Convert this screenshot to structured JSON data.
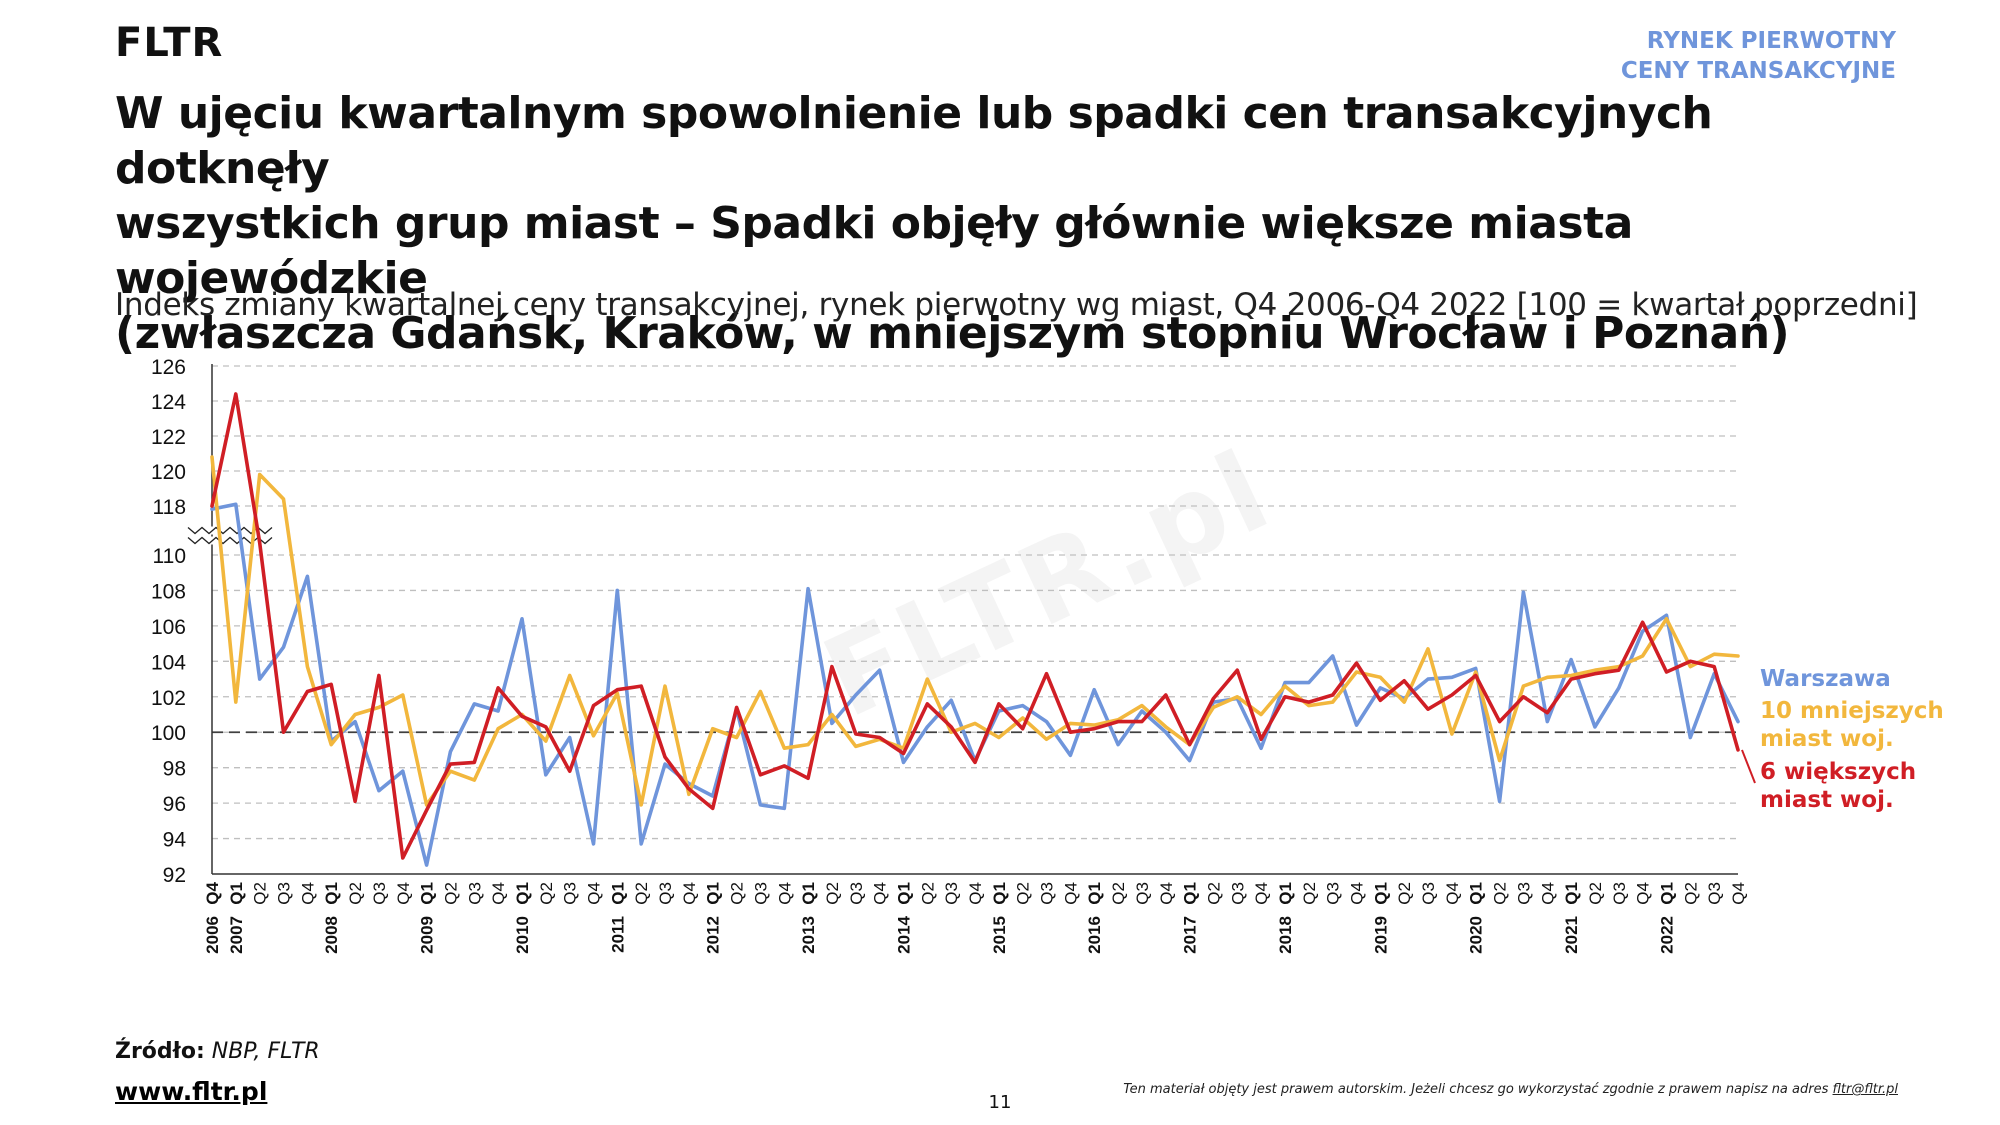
{
  "header": {
    "brand": "FLTR",
    "topright_line1": "RYNEK PIERWOTNY",
    "topright_line2": "CENY TRANSAKCYJNE",
    "title_line1": "W ujęciu kwartalnym spowolnienie lub spadki cen transakcyjnych dotknęły",
    "title_line2": "wszystkich grup miast – Spadki objęły głównie większe miasta wojewódzkie",
    "title_line3": "(zwłaszcza Gdańsk, Kraków, w mniejszym stopniu Wrocław i Poznań)",
    "subtitle": "Indeks zmiany kwartalnej ceny transakcyjnej, rynek pierwotny wg miast, Q4 2006-Q4 2022 [100 = kwartał poprzedni]"
  },
  "footer": {
    "source_label": "Źródło:",
    "source_text": "NBP, FLTR",
    "website": "www.fltr.pl",
    "page_number": "11",
    "copyright_text": "Ten materiał objęty jest prawem autorskim. Jeżeli chcesz go wykorzystać zgodnie z prawem napisz na adres",
    "copyright_email": "fltr@fltr.pl"
  },
  "watermark": "FLTR.pl",
  "colors": {
    "warszawa": "#6f95db",
    "mniejsze": "#f2b73d",
    "wieksze": "#d01e25",
    "grid": "#bfbfbf",
    "baseline": "#404040",
    "axis": "#333333"
  },
  "legend": {
    "warszawa": "Warszawa",
    "mniejsze_line1": "10 mniejszych",
    "mniejsze_line2": "miast woj.",
    "wieksze_line1": "6 większych",
    "wieksze_line2": "miast woj."
  },
  "chart_data": {
    "type": "line",
    "x_years": [
      "2006",
      "2007",
      "2008",
      "2009",
      "2010",
      "2011",
      "2012",
      "2013",
      "2014",
      "2015",
      "2016",
      "2017",
      "2018",
      "2019",
      "2020",
      "2021",
      "2022"
    ],
    "x_quarters": [
      "Q4",
      "Q1",
      "Q2",
      "Q3",
      "Q4",
      "Q1",
      "Q2",
      "Q3",
      "Q4",
      "Q1",
      "Q2",
      "Q3",
      "Q4",
      "Q1",
      "Q2",
      "Q3",
      "Q4",
      "Q1",
      "Q2",
      "Q3",
      "Q4",
      "Q1",
      "Q2",
      "Q3",
      "Q4",
      "Q1",
      "Q2",
      "Q3",
      "Q4",
      "Q1",
      "Q2",
      "Q3",
      "Q4",
      "Q1",
      "Q2",
      "Q3",
      "Q4",
      "Q1",
      "Q2",
      "Q3",
      "Q4",
      "Q1",
      "Q2",
      "Q3",
      "Q4",
      "Q1",
      "Q2",
      "Q3",
      "Q4",
      "Q1",
      "Q2",
      "Q3",
      "Q4",
      "Q1",
      "Q2",
      "Q3",
      "Q4",
      "Q1",
      "Q2",
      "Q3",
      "Q4",
      "Q1",
      "Q2",
      "Q3",
      "Q4"
    ],
    "y_ticks": [
      92,
      94,
      96,
      98,
      100,
      102,
      104,
      106,
      108,
      110,
      118,
      120,
      122,
      124,
      126
    ],
    "axis_break": [
      110,
      118
    ],
    "ylim": [
      92,
      126
    ],
    "baseline": 100,
    "grid": true,
    "legend_position": "right",
    "series": [
      {
        "name": "Warszawa",
        "values": [
          117.5,
          118.1,
          103.0,
          104.8,
          108.8,
          99.5,
          100.6,
          96.7,
          97.8,
          92.5,
          98.9,
          101.6,
          101.2,
          106.4,
          97.6,
          99.7,
          93.7,
          108.0,
          93.7,
          98.2,
          97.1,
          96.4,
          101.3,
          95.9,
          95.7,
          108.1,
          100.5,
          102.1,
          103.5,
          98.3,
          100.3,
          101.8,
          98.4,
          101.2,
          101.5,
          100.6,
          98.7,
          102.4,
          99.3,
          101.2,
          100.0,
          98.4,
          101.7,
          101.9,
          99.1,
          102.8,
          102.8,
          104.3,
          100.4,
          102.5,
          101.9,
          103.0,
          103.1,
          103.6,
          96.1,
          107.9,
          100.6,
          104.1,
          100.3,
          102.5,
          105.7,
          106.6,
          99.7,
          103.3,
          100.6
        ]
      },
      {
        "name": "10 mniejszych miast woj.",
        "values": [
          120.8,
          101.7,
          119.8,
          118.4,
          103.7,
          99.3,
          101.0,
          101.4,
          102.1,
          95.9,
          97.8,
          97.3,
          100.2,
          101.0,
          99.5,
          103.2,
          99.8,
          102.2,
          95.9,
          102.6,
          96.5,
          100.2,
          99.7,
          102.3,
          99.1,
          99.3,
          101.0,
          99.2,
          99.6,
          99.1,
          103.0,
          100.0,
          100.5,
          99.7,
          100.8,
          99.6,
          100.5,
          100.4,
          100.7,
          101.5,
          100.3,
          99.3,
          101.4,
          102.0,
          101.0,
          102.6,
          101.5,
          101.7,
          103.4,
          103.1,
          101.7,
          104.7,
          99.9,
          103.4,
          98.4,
          102.6,
          103.1,
          103.2,
          103.5,
          103.7,
          104.3,
          106.4,
          103.7,
          104.4,
          104.3
        ]
      },
      {
        "name": "6 większych miast woj.",
        "values": [
          118.0,
          124.4,
          112.0,
          100.0,
          102.3,
          102.7,
          96.1,
          103.2,
          92.9,
          95.6,
          98.2,
          98.3,
          102.5,
          100.9,
          100.3,
          97.8,
          101.5,
          102.4,
          102.6,
          98.6,
          96.8,
          95.7,
          101.4,
          97.6,
          98.1,
          97.4,
          103.7,
          99.9,
          99.7,
          98.8,
          101.6,
          100.3,
          98.3,
          101.6,
          100.2,
          103.3,
          100.0,
          100.2,
          100.6,
          100.6,
          102.1,
          99.3,
          101.9,
          103.5,
          99.6,
          102.0,
          101.7,
          102.1,
          103.9,
          101.8,
          102.9,
          101.3,
          102.1,
          103.2,
          100.6,
          102.0,
          101.1,
          103.0,
          103.3,
          103.5,
          106.2,
          103.4,
          104.0,
          103.7,
          99.0
        ]
      }
    ]
  }
}
